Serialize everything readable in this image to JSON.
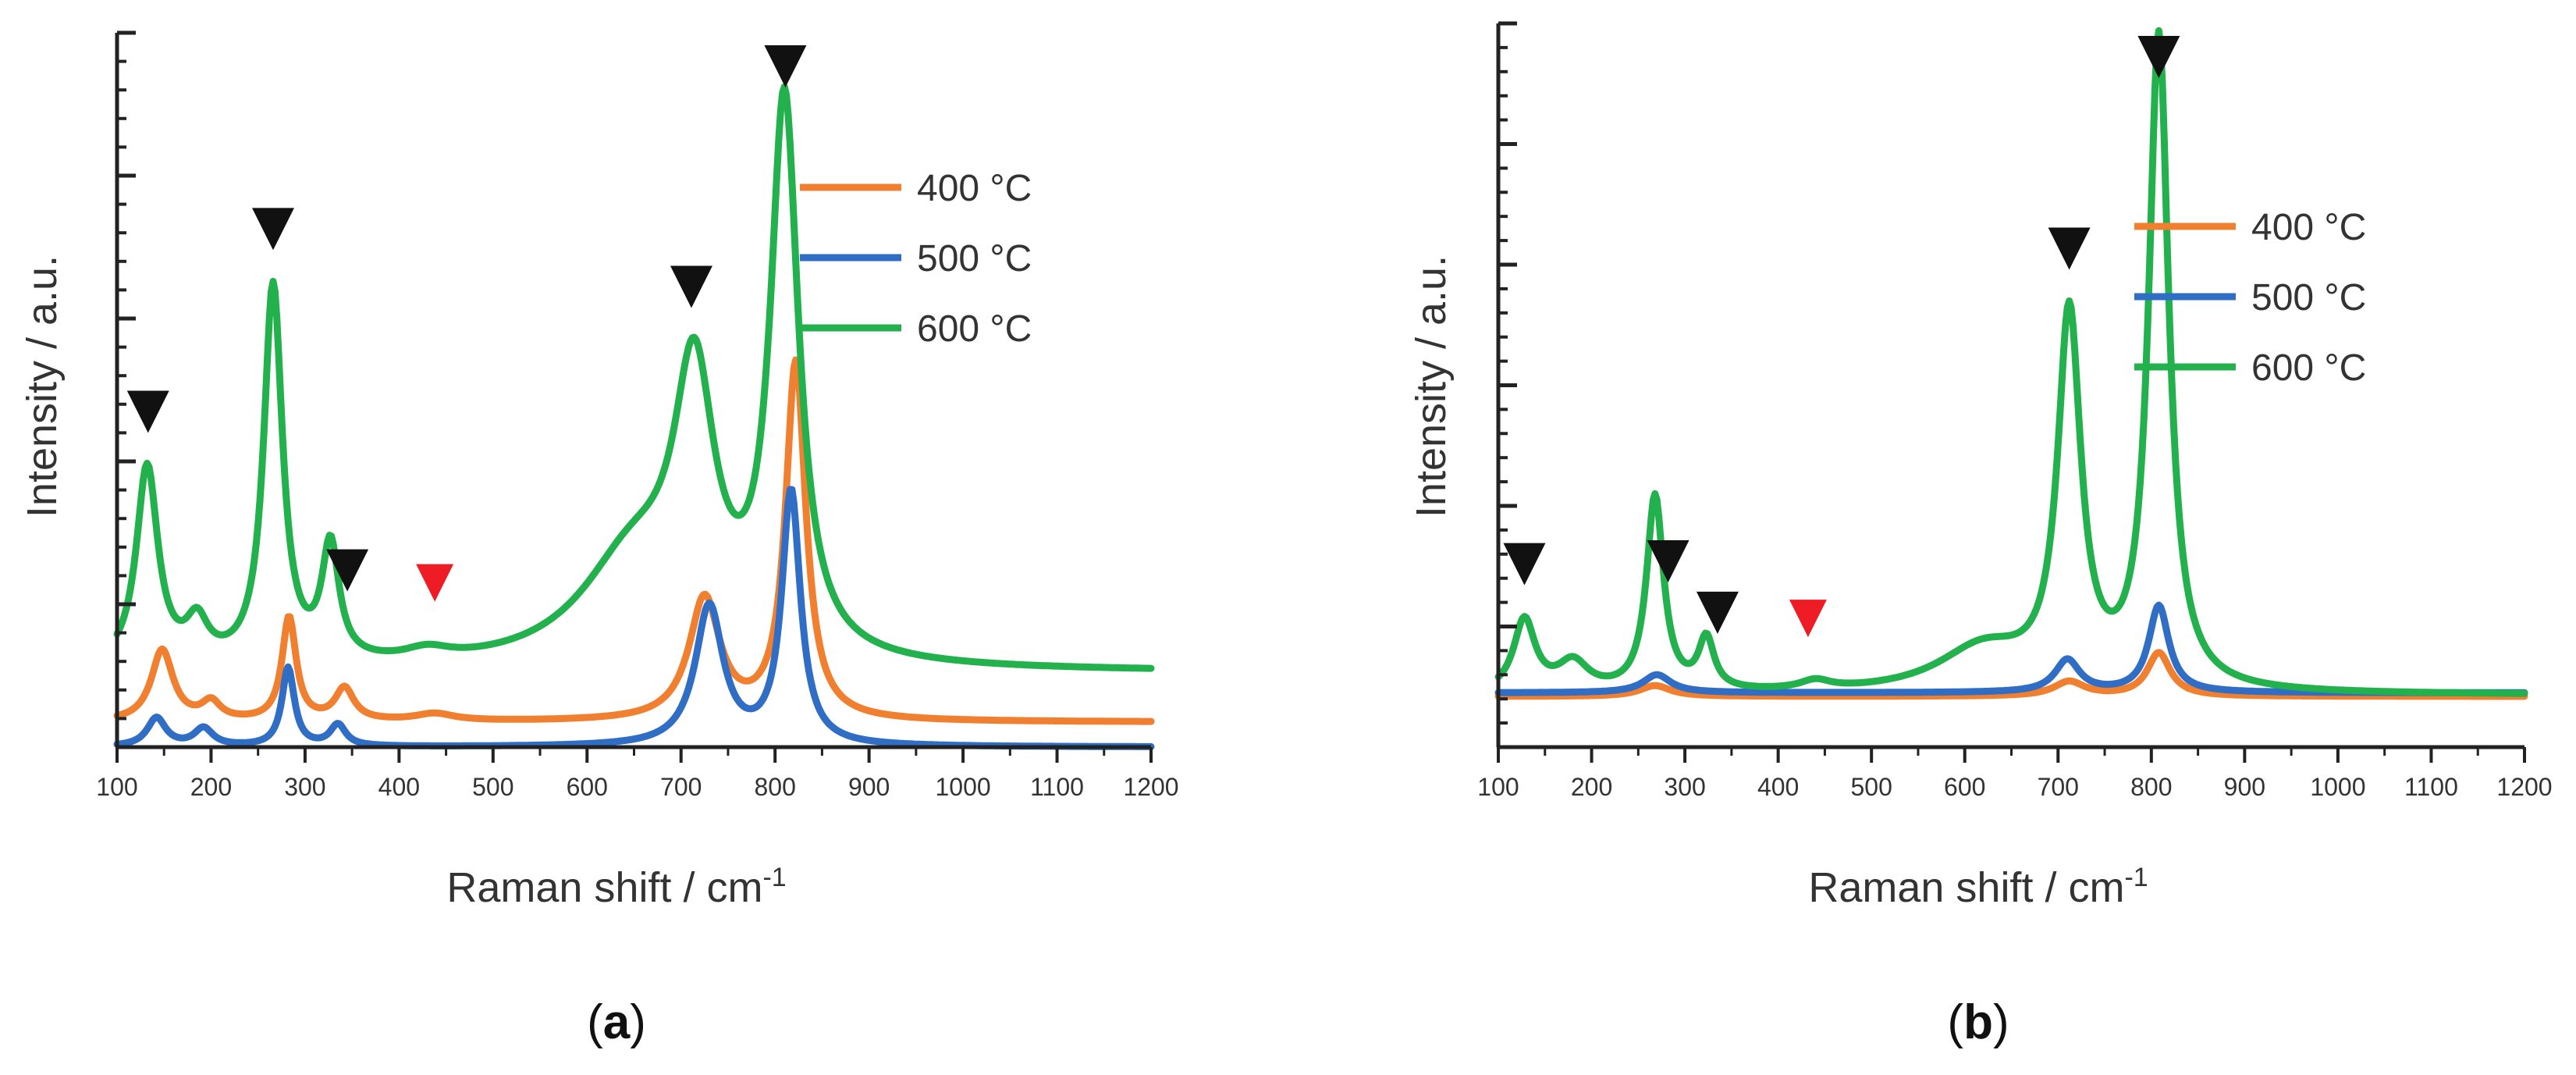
{
  "figure": {
    "panel_labels": [
      "a",
      "b"
    ]
  },
  "chart_data": [
    {
      "panel": "a",
      "type": "line",
      "xlabel": "Raman shift / cm",
      "xlabel_superscript": "-1",
      "ylabel": "Intensity / a.u.",
      "xlim": [
        100,
        1200
      ],
      "ylim": [
        0,
        10
      ],
      "x_ticks": [
        100,
        200,
        300,
        400,
        500,
        600,
        700,
        800,
        900,
        1000,
        1100,
        1200
      ],
      "grid": false,
      "legend_position": "top-right",
      "colors": {
        "400 °C": "#F08030",
        "500 °C": "#2F6EC4",
        "600 °C": "#22B14C"
      },
      "series": [
        {
          "name": "400 °C",
          "baseline": 0.35,
          "peaks": [
            [
              148,
              1.0,
              14
            ],
            [
              200,
              0.25,
              12
            ],
            [
              283,
              1.45,
              9
            ],
            [
              342,
              0.45,
              12
            ],
            [
              438,
              0.1,
              25
            ],
            [
              725,
              1.7,
              20
            ],
            [
              822,
              5.0,
              13
            ]
          ]
        },
        {
          "name": "500 °C",
          "baseline": 0.0,
          "peaks": [
            [
              142,
              0.4,
              12
            ],
            [
              192,
              0.25,
              12
            ],
            [
              282,
              1.1,
              8
            ],
            [
              335,
              0.3,
              10
            ],
            [
              730,
              1.95,
              18
            ],
            [
              817,
              3.55,
              12
            ]
          ]
        },
        {
          "name": "600 °C",
          "baseline": 1.05,
          "peaks": [
            [
              132,
              2.8,
              14
            ],
            [
              185,
              0.55,
              14
            ],
            [
              266,
              5.3,
              12
            ],
            [
              327,
              1.6,
              11
            ],
            [
              430,
              0.15,
              30
            ],
            [
              650,
              1.5,
              70
            ],
            [
              714,
              3.6,
              26
            ],
            [
              810,
              7.7,
              18
            ]
          ]
        }
      ],
      "markers": [
        {
          "x": 133,
          "color": "black"
        },
        {
          "x": 266,
          "color": "black"
        },
        {
          "x": 345,
          "color": "black"
        },
        {
          "x": 438,
          "color": "red"
        },
        {
          "x": 711,
          "color": "black"
        },
        {
          "x": 811,
          "color": "black"
        }
      ]
    },
    {
      "panel": "b",
      "type": "line",
      "xlabel": "Raman shift / cm",
      "xlabel_superscript": "-1",
      "ylabel": "Intensity / a.u.",
      "xlim": [
        100,
        1200
      ],
      "ylim": [
        0,
        10
      ],
      "x_ticks": [
        100,
        200,
        300,
        400,
        500,
        600,
        700,
        800,
        900,
        1000,
        1100,
        1200
      ],
      "grid": false,
      "legend_position": "top-right",
      "colors": {
        "400 °C": "#F08030",
        "500 °C": "#2F6EC4",
        "600 °C": "#22B14C"
      },
      "series": [
        {
          "name": "400 °C",
          "baseline": 0.7,
          "peaks": [
            [
              268,
              0.15,
              20
            ],
            [
              712,
              0.2,
              20
            ],
            [
              808,
              0.6,
              15
            ]
          ]
        },
        {
          "name": "500 °C",
          "baseline": 0.75,
          "peaks": [
            [
              270,
              0.25,
              18
            ],
            [
              710,
              0.45,
              16
            ],
            [
              808,
              1.2,
              13
            ]
          ]
        },
        {
          "name": "600 °C",
          "baseline": 0.72,
          "peaks": [
            [
              128,
              1.0,
              14
            ],
            [
              180,
              0.4,
              20
            ],
            [
              268,
              2.7,
              11
            ],
            [
              323,
              0.7,
              10
            ],
            [
              440,
              0.12,
              20
            ],
            [
              620,
              0.6,
              60
            ],
            [
              712,
              5.1,
              15
            ],
            [
              808,
              9.0,
              13
            ]
          ]
        }
      ],
      "markers": [
        {
          "x": 128,
          "color": "black"
        },
        {
          "x": 282,
          "color": "black"
        },
        {
          "x": 335,
          "color": "black"
        },
        {
          "x": 432,
          "color": "red"
        },
        {
          "x": 712,
          "color": "black"
        },
        {
          "x": 808,
          "color": "black"
        }
      ]
    }
  ]
}
